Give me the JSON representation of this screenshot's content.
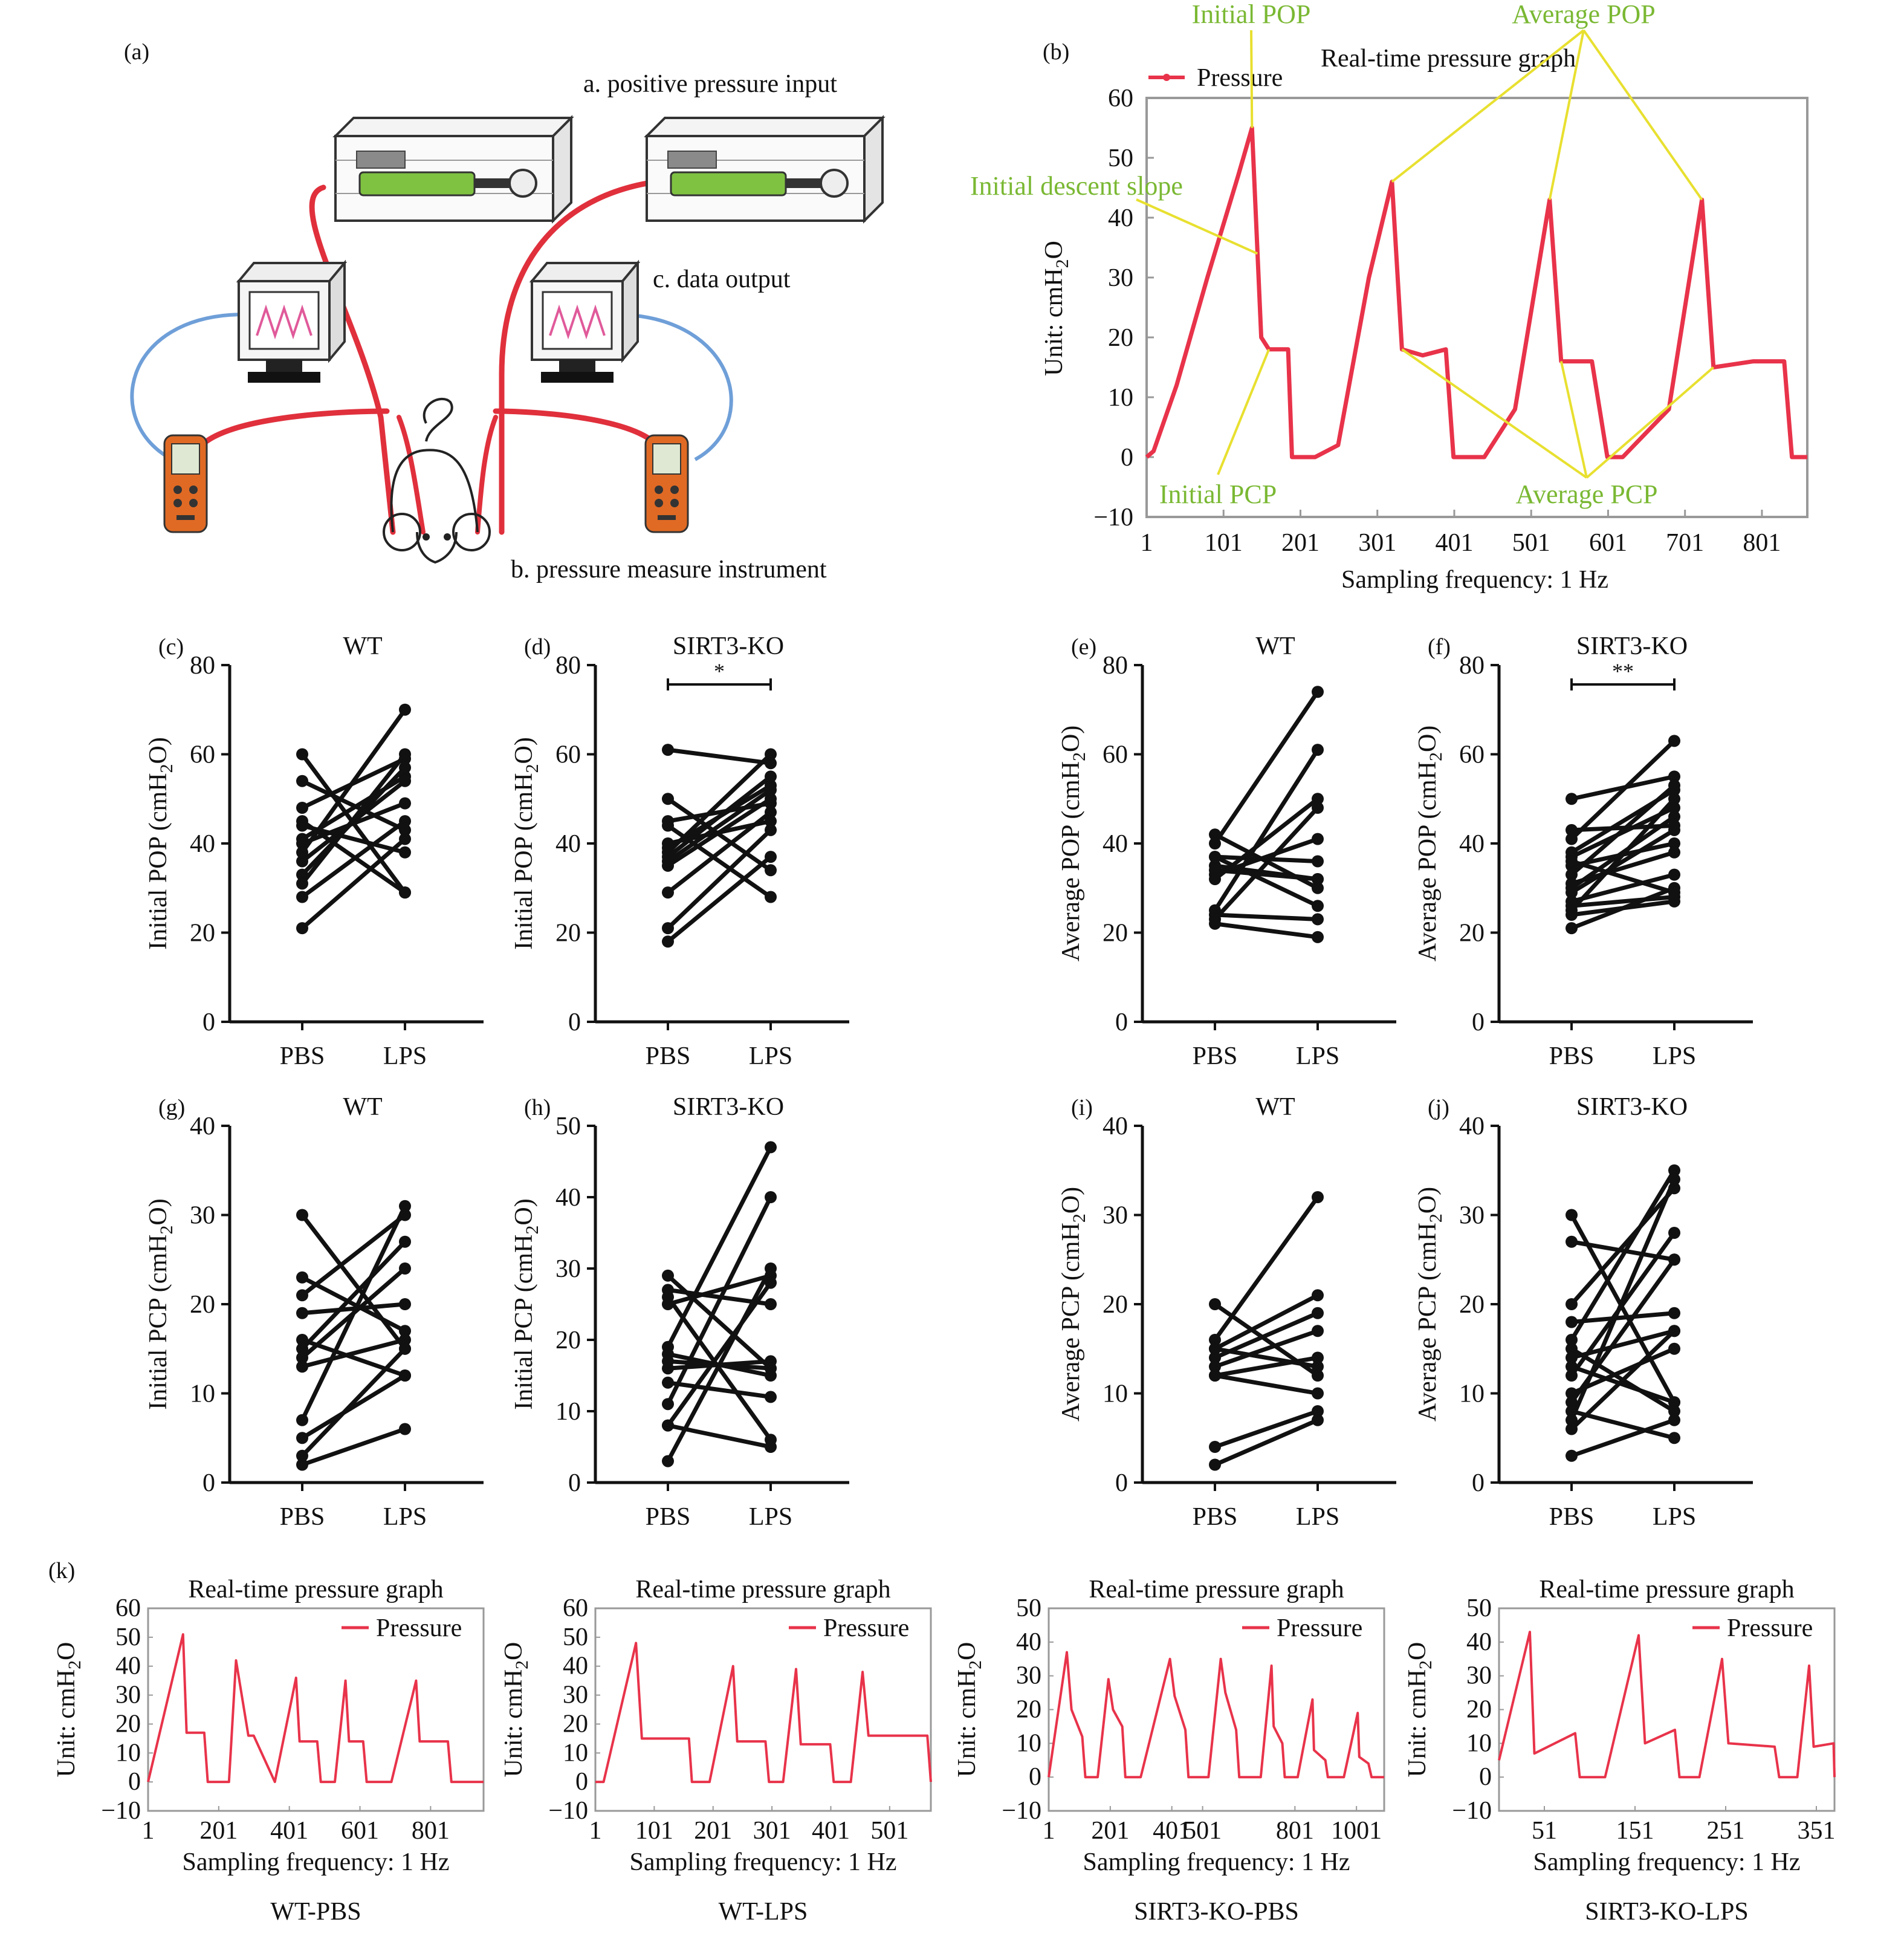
{
  "colors": {
    "line": "#e8334a",
    "annotation_text": "#7ab833",
    "annotation_line": "#e8e030",
    "axis": "#111111",
    "points": "#111111",
    "device_green": "#7fc242",
    "tube_red": "#e0303c",
    "cable_blue": "#6f9fd8",
    "meter_orange": "#e06a24"
  },
  "panel_a": {
    "label": "(a)",
    "labels": {
      "input": "a. positive pressure input",
      "measure": "b. pressure measure instrument",
      "output": "c. data output"
    }
  },
  "chart_data": [
    {
      "id": "b",
      "type": "line",
      "panel_label": "(b)",
      "title": "Real-time pressure graph",
      "legend": "Pressure",
      "xlabel": "Sampling frequency: 1 Hz",
      "ylabel": "Unit: cmH2O",
      "xlim": [
        1,
        860
      ],
      "ylim": [
        -10,
        60
      ],
      "xticks": [
        1,
        101,
        201,
        301,
        401,
        501,
        601,
        701,
        801
      ],
      "yticks": [
        -10,
        0,
        10,
        20,
        30,
        40,
        50,
        60
      ],
      "x": [
        1,
        10,
        40,
        80,
        120,
        138,
        150,
        160,
        185,
        190,
        220,
        250,
        290,
        320,
        333,
        360,
        390,
        400,
        440,
        480,
        525,
        540,
        580,
        600,
        620,
        680,
        723,
        738,
        790,
        830,
        840,
        860
      ],
      "y": [
        0,
        1,
        12,
        30,
        47,
        55,
        20,
        18,
        18,
        0,
        0,
        2,
        30,
        46,
        18,
        17,
        18,
        0,
        0,
        8,
        43,
        16,
        16,
        0,
        0,
        8,
        43,
        15,
        16,
        16,
        0,
        0
      ],
      "annotations": [
        {
          "text": "Initial POP",
          "target": [
            138,
            55
          ]
        },
        {
          "text": "Average POP",
          "targets": [
            [
              320,
              46
            ],
            [
              525,
              43
            ],
            [
              723,
              43
            ]
          ]
        },
        {
          "text": "Initial descent slope",
          "target": [
            145,
            34
          ]
        },
        {
          "text": "Initial PCP",
          "target": [
            160,
            18
          ]
        },
        {
          "text": "Average PCP",
          "targets": [
            [
              333,
              18
            ],
            [
              540,
              16
            ],
            [
              738,
              15
            ]
          ]
        }
      ]
    },
    {
      "id": "c",
      "type": "paired",
      "panel_label": "(c)",
      "title": "WT",
      "ylabel": "Initial POP (cmH2O)",
      "ylim": [
        0,
        80
      ],
      "yticks": [
        0,
        20,
        40,
        60,
        80
      ],
      "categories": [
        "PBS",
        "LPS"
      ],
      "significance": "",
      "pairs": [
        [
          60,
          29
        ],
        [
          54,
          43
        ],
        [
          48,
          59
        ],
        [
          44,
          38
        ],
        [
          41,
          55
        ],
        [
          40,
          49
        ],
        [
          36,
          54
        ],
        [
          33,
          57
        ],
        [
          31,
          60
        ],
        [
          28,
          45
        ],
        [
          21,
          41
        ],
        [
          38,
          70
        ],
        [
          45,
          29
        ]
      ]
    },
    {
      "id": "d",
      "type": "paired",
      "panel_label": "(d)",
      "title": "SIRT3-KO",
      "ylabel": "Initial POP (cmH2O)",
      "ylim": [
        0,
        80
      ],
      "yticks": [
        0,
        20,
        40,
        60,
        80
      ],
      "categories": [
        "PBS",
        "LPS"
      ],
      "significance": "*",
      "pairs": [
        [
          61,
          58
        ],
        [
          50,
          34
        ],
        [
          45,
          49
        ],
        [
          44,
          28
        ],
        [
          39,
          53
        ],
        [
          38,
          60
        ],
        [
          37,
          55
        ],
        [
          35,
          50
        ],
        [
          29,
          47
        ],
        [
          21,
          43
        ],
        [
          18,
          37
        ],
        [
          40,
          45
        ],
        [
          36,
          52
        ]
      ]
    },
    {
      "id": "e",
      "type": "paired",
      "panel_label": "(e)",
      "title": "WT",
      "ylabel": "Average POP (cmH2O)",
      "ylim": [
        0,
        80
      ],
      "yticks": [
        0,
        20,
        40,
        60,
        80
      ],
      "categories": [
        "PBS",
        "LPS"
      ],
      "significance": "",
      "pairs": [
        [
          42,
          30
        ],
        [
          40,
          74
        ],
        [
          37,
          36
        ],
        [
          35,
          32
        ],
        [
          33,
          41
        ],
        [
          32,
          50
        ],
        [
          25,
          61
        ],
        [
          24,
          23
        ],
        [
          23,
          48
        ],
        [
          22,
          19
        ],
        [
          37,
          26
        ],
        [
          34,
          32
        ]
      ]
    },
    {
      "id": "f",
      "type": "paired",
      "panel_label": "(f)",
      "title": "SIRT3-KO",
      "ylabel": "Average POP (cmH2O)",
      "ylim": [
        0,
        80
      ],
      "yticks": [
        0,
        20,
        40,
        60,
        80
      ],
      "categories": [
        "PBS",
        "LPS"
      ],
      "significance": "**",
      "pairs": [
        [
          50,
          55
        ],
        [
          43,
          44
        ],
        [
          41,
          63
        ],
        [
          38,
          52
        ],
        [
          37,
          48
        ],
        [
          35,
          40
        ],
        [
          33,
          53
        ],
        [
          31,
          38
        ],
        [
          29,
          43
        ],
        [
          27,
          33
        ],
        [
          26,
          28
        ],
        [
          25,
          50
        ],
        [
          24,
          27
        ],
        [
          21,
          30
        ],
        [
          30,
          46
        ],
        [
          36,
          29
        ]
      ]
    },
    {
      "id": "g",
      "type": "paired",
      "panel_label": "(g)",
      "title": "WT",
      "ylabel": "Initial PCP (cmH2O)",
      "ylim": [
        0,
        40
      ],
      "yticks": [
        0,
        10,
        20,
        30,
        40
      ],
      "categories": [
        "PBS",
        "LPS"
      ],
      "significance": "",
      "pairs": [
        [
          30,
          15
        ],
        [
          23,
          17
        ],
        [
          21,
          30
        ],
        [
          19,
          20
        ],
        [
          16,
          12
        ],
        [
          15,
          27
        ],
        [
          14,
          24
        ],
        [
          13,
          16
        ],
        [
          7,
          31
        ],
        [
          5,
          12
        ],
        [
          2,
          6
        ],
        [
          3,
          15
        ]
      ]
    },
    {
      "id": "h",
      "type": "paired",
      "panel_label": "(h)",
      "title": "SIRT3-KO",
      "ylabel": "Initial PCP (cmH2O)",
      "ylim": [
        0,
        50
      ],
      "yticks": [
        0,
        10,
        20,
        30,
        40,
        50
      ],
      "categories": [
        "PBS",
        "LPS"
      ],
      "significance": "",
      "pairs": [
        [
          29,
          16
        ],
        [
          27,
          25
        ],
        [
          26,
          6
        ],
        [
          25,
          29
        ],
        [
          19,
          47
        ],
        [
          18,
          15
        ],
        [
          16,
          17
        ],
        [
          14,
          12
        ],
        [
          11,
          40
        ],
        [
          8,
          28
        ],
        [
          8,
          5
        ],
        [
          3,
          30
        ],
        [
          17,
          16
        ]
      ]
    },
    {
      "id": "i",
      "type": "paired",
      "panel_label": "(i)",
      "title": "WT",
      "ylabel": "Average PCP (cmH2O)",
      "ylim": [
        0,
        40
      ],
      "yticks": [
        0,
        10,
        20,
        30,
        40
      ],
      "categories": [
        "PBS",
        "LPS"
      ],
      "significance": "",
      "pairs": [
        [
          20,
          12
        ],
        [
          16,
          32
        ],
        [
          15,
          21
        ],
        [
          14,
          19
        ],
        [
          13,
          17
        ],
        [
          12,
          14
        ],
        [
          12,
          10
        ],
        [
          4,
          8
        ],
        [
          2,
          7
        ],
        [
          15,
          13
        ]
      ]
    },
    {
      "id": "j",
      "type": "paired",
      "panel_label": "(j)",
      "title": "SIRT3-KO",
      "ylabel": "Average PCP (cmH2O)",
      "ylim": [
        0,
        40
      ],
      "yticks": [
        0,
        10,
        20,
        30,
        40
      ],
      "categories": [
        "PBS",
        "LPS"
      ],
      "significance": "",
      "pairs": [
        [
          30,
          9
        ],
        [
          27,
          25
        ],
        [
          20,
          33
        ],
        [
          18,
          19
        ],
        [
          16,
          35
        ],
        [
          15,
          8
        ],
        [
          14,
          17
        ],
        [
          12,
          28
        ],
        [
          10,
          15
        ],
        [
          9,
          25
        ],
        [
          8,
          5
        ],
        [
          7,
          34
        ],
        [
          6,
          17
        ],
        [
          3,
          7
        ],
        [
          13,
          9
        ]
      ]
    },
    {
      "id": "k1",
      "type": "line",
      "title": "Real-time pressure graph",
      "caption": "WT-PBS",
      "legend": "Pressure",
      "xlabel": "Sampling frequency: 1 Hz",
      "ylabel": "Unit: cmH2O",
      "xlim": [
        1,
        951
      ],
      "ylim": [
        -10,
        60
      ],
      "xticks": [
        1,
        201,
        401,
        601,
        801
      ],
      "yticks": [
        -10,
        0,
        10,
        20,
        30,
        40,
        50,
        60
      ],
      "x": [
        1,
        100,
        110,
        160,
        170,
        230,
        250,
        285,
        300,
        360,
        420,
        430,
        480,
        490,
        530,
        560,
        570,
        610,
        620,
        690,
        760,
        770,
        850,
        860,
        951
      ],
      "y": [
        0,
        51,
        17,
        17,
        0,
        0,
        42,
        16,
        16,
        0,
        36,
        14,
        14,
        0,
        0,
        35,
        14,
        14,
        0,
        0,
        35,
        14,
        14,
        0,
        0
      ]
    },
    {
      "id": "k2",
      "type": "line",
      "title": "Real-time pressure graph",
      "caption": "WT-LPS",
      "legend": "Pressure",
      "xlabel": "Sampling frequency: 1 Hz",
      "ylabel": "Unit: cmH2O",
      "xlim": [
        1,
        571
      ],
      "ylim": [
        -10,
        60
      ],
      "xticks": [
        1,
        101,
        201,
        301,
        401,
        501
      ],
      "yticks": [
        -10,
        0,
        10,
        20,
        30,
        40,
        50,
        60
      ],
      "x": [
        1,
        15,
        70,
        80,
        160,
        165,
        195,
        235,
        242,
        290,
        296,
        320,
        342,
        350,
        400,
        406,
        435,
        455,
        465,
        565,
        571
      ],
      "y": [
        0,
        0,
        48,
        15,
        15,
        0,
        0,
        40,
        14,
        14,
        0,
        0,
        39,
        13,
        13,
        0,
        0,
        38,
        16,
        16,
        0
      ]
    },
    {
      "id": "k3",
      "type": "line",
      "title": "Real-time pressure graph",
      "caption": "SIRT3-KO-PBS",
      "legend": "Pressure",
      "xlabel": "Sampling frequency: 1 Hz",
      "ylabel": "Unit: cmH2O",
      "xlim": [
        1,
        1091
      ],
      "ylim": [
        -10,
        50
      ],
      "xticks": [
        1,
        201,
        401,
        501,
        801,
        1001
      ],
      "yticks": [
        -10,
        0,
        10,
        20,
        30,
        40,
        50
      ],
      "x": [
        1,
        60,
        75,
        110,
        120,
        160,
        195,
        210,
        240,
        250,
        300,
        395,
        410,
        445,
        455,
        520,
        560,
        575,
        610,
        620,
        690,
        725,
        732,
        760,
        768,
        810,
        858,
        863,
        900,
        908,
        960,
        1005,
        1010,
        1040,
        1050,
        1091
      ],
      "y": [
        0,
        37,
        20,
        12,
        0,
        0,
        29,
        20,
        15,
        0,
        0,
        35,
        24,
        14,
        0,
        0,
        35,
        25,
        14,
        0,
        0,
        33,
        15,
        10,
        0,
        0,
        23,
        8,
        5,
        0,
        0,
        19,
        6,
        4,
        0,
        0
      ]
    },
    {
      "id": "k4",
      "type": "line",
      "title": "Real-time pressure graph",
      "caption": "SIRT3-KO-LPS",
      "legend": "Pressure",
      "xlabel": "Sampling frequency: 1 Hz",
      "ylabel": "Unit: cmH2O",
      "xlim": [
        1,
        371
      ],
      "ylim": [
        -10,
        50
      ],
      "xticks": [
        51,
        151,
        251,
        351
      ],
      "yticks": [
        -10,
        0,
        10,
        20,
        30,
        40,
        50
      ],
      "x": [
        1,
        35,
        40,
        85,
        90,
        118,
        155,
        162,
        195,
        200,
        222,
        247,
        254,
        305,
        310,
        330,
        343,
        348,
        370,
        371
      ],
      "y": [
        5,
        43,
        7,
        13,
        0,
        0,
        42,
        10,
        14,
        0,
        0,
        35,
        10,
        9,
        0,
        0,
        33,
        9,
        10,
        0
      ]
    }
  ]
}
